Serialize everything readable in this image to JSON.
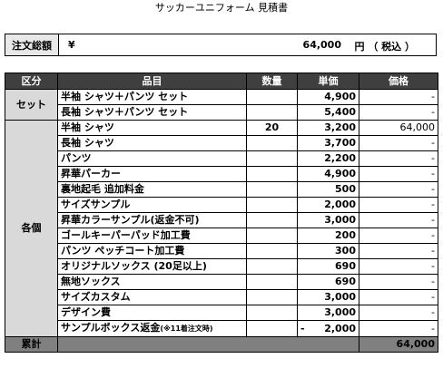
{
  "title": "サッカーユニフォーム 見積書",
  "total": {
    "label": "注文総額",
    "yen": "¥",
    "amount": "64,000",
    "unit": "円 （ 税込 ）"
  },
  "headers": [
    "区分",
    "品目",
    "数量",
    "単価",
    "価格"
  ],
  "groups": [
    {
      "category": "セット",
      "rows": [
        {
          "item": "半袖 シャツ＋パンツ セット",
          "qty": "",
          "unit_prefix": "",
          "unit": "4,900",
          "price": "-"
        },
        {
          "item": "長袖 シャツ＋パンツ セット",
          "qty": "",
          "unit_prefix": "",
          "unit": "5,400",
          "price": "-"
        }
      ]
    },
    {
      "category": "各個",
      "rows": [
        {
          "item": "半袖 シャツ",
          "qty": "20",
          "unit_prefix": "",
          "unit": "3,200",
          "price": "64,000"
        },
        {
          "item": "長袖 シャツ",
          "qty": "",
          "unit_prefix": "",
          "unit": "3,700",
          "price": "-"
        },
        {
          "item": "パンツ",
          "qty": "",
          "unit_prefix": "",
          "unit": "2,200",
          "price": "-"
        },
        {
          "item": "昇華パーカー",
          "qty": "",
          "unit_prefix": "",
          "unit": "4,900",
          "price": "-"
        },
        {
          "item": "裏地起毛 追加料金",
          "qty": "",
          "unit_prefix": "",
          "unit": "500",
          "price": "-"
        },
        {
          "item": "サイズサンプル",
          "qty": "",
          "unit_prefix": "",
          "unit": "2,000",
          "price": "-"
        },
        {
          "item": "昇華カラーサンプル(返金不可)",
          "qty": "",
          "unit_prefix": "",
          "unit": "3,000",
          "price": "-"
        },
        {
          "item": "ゴールキーパーパッド加工費",
          "qty": "",
          "unit_prefix": "",
          "unit": "200",
          "price": "-"
        },
        {
          "item": "パンツ ペッチコート加工費",
          "qty": "",
          "unit_prefix": "",
          "unit": "300",
          "price": "-"
        },
        {
          "item": "オリジナルソックス (20足以上)",
          "qty": "",
          "unit_prefix": "",
          "unit": "690",
          "price": "-"
        },
        {
          "item": "無地ソックス",
          "qty": "",
          "unit_prefix": "",
          "unit": "690",
          "price": "-"
        },
        {
          "item": "サイズカスタム",
          "qty": "",
          "unit_prefix": "",
          "unit": "3,000",
          "price": "-"
        },
        {
          "item": "デザイン費",
          "qty": "",
          "unit_prefix": "",
          "unit": "3,000",
          "price": "-"
        },
        {
          "item": "サンプルボックス返金",
          "item_note": "(※11着注文時)",
          "qty": "",
          "unit_prefix": "-",
          "unit": "2,000",
          "price": "-"
        }
      ]
    }
  ],
  "summary": {
    "label": "累計",
    "price": "64,000"
  }
}
